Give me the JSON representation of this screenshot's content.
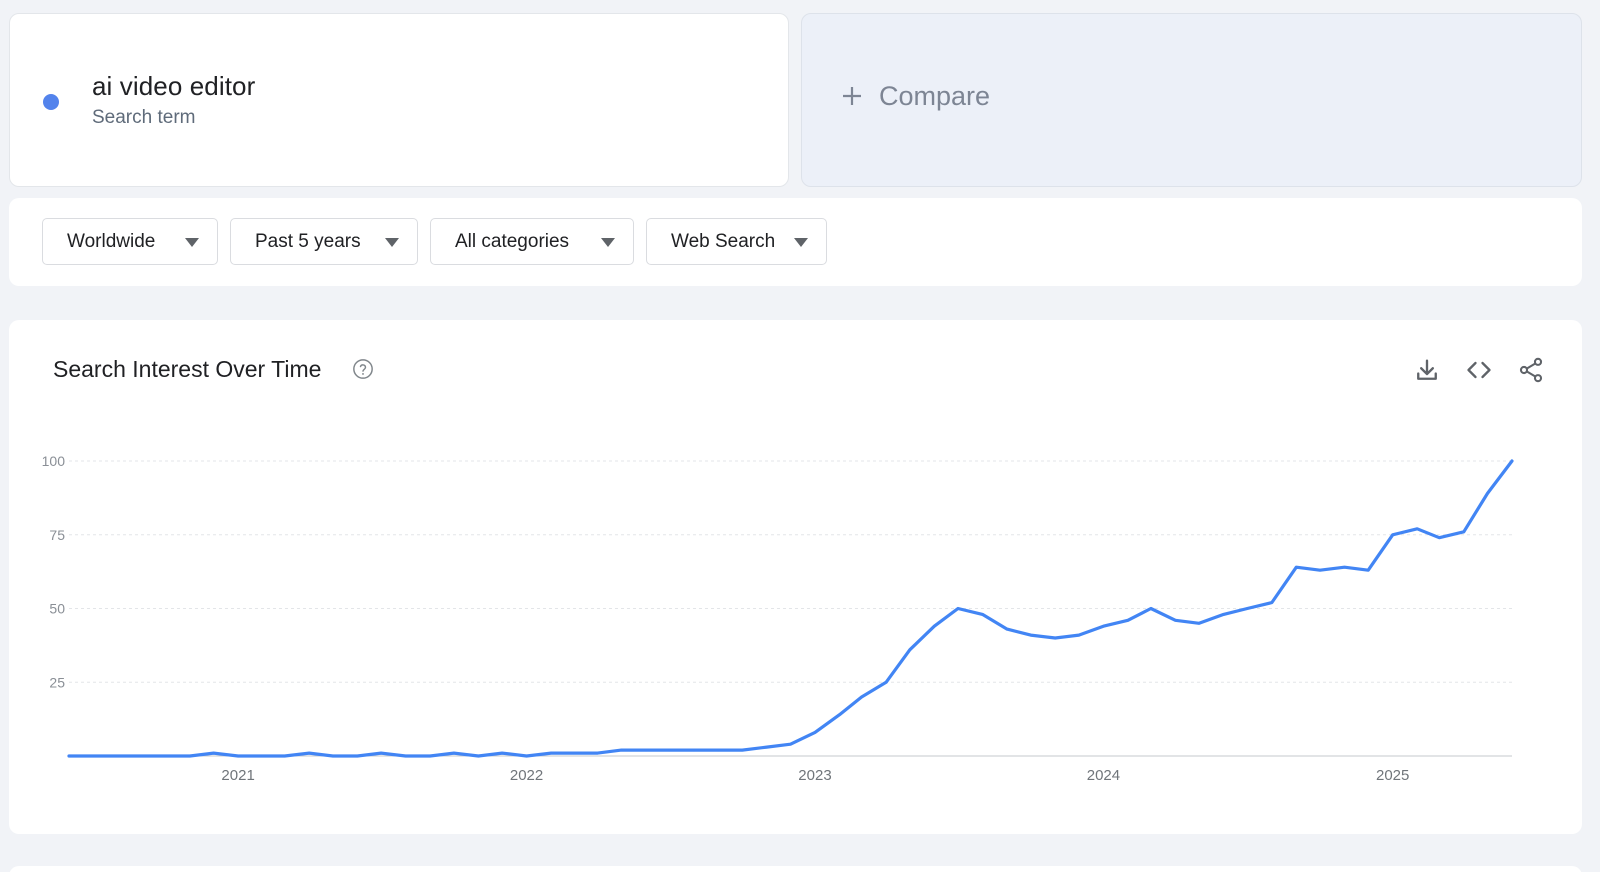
{
  "term": {
    "text": "ai video editor",
    "type_label": "Search term",
    "color": "#5383ec"
  },
  "compare": {
    "label": "Compare",
    "icon": "plus-icon"
  },
  "filters": [
    {
      "label": "Worldwide"
    },
    {
      "label": "Past 5 years"
    },
    {
      "label": "All categories"
    },
    {
      "label": "Web Search"
    }
  ],
  "panel": {
    "title": "Search Interest Over Time",
    "help_icon": "help-circle-icon",
    "actions": [
      "download-icon",
      "embed-code-icon",
      "share-icon"
    ]
  },
  "chart_data": {
    "type": "line",
    "title": "",
    "xlabel": "",
    "ylabel": "",
    "ylim": [
      0,
      100
    ],
    "yticks": [
      25,
      50,
      75,
      100
    ],
    "xticks": [
      {
        "label": "2021",
        "x": "2021-01-01"
      },
      {
        "label": "2022",
        "x": "2022-01-01"
      },
      {
        "label": "2023",
        "x": "2023-01-01"
      },
      {
        "label": "2024",
        "x": "2024-01-01"
      },
      {
        "label": "2025",
        "x": "2025-01-01"
      }
    ],
    "xrange": [
      "2020-06-01",
      "2025-06-01"
    ],
    "grid": true,
    "line_color": "#4285f4",
    "series": [
      {
        "points": [
          [
            "2020-06-01",
            0
          ],
          [
            "2020-07-01",
            0
          ],
          [
            "2020-08-01",
            0
          ],
          [
            "2020-09-01",
            0
          ],
          [
            "2020-10-01",
            0
          ],
          [
            "2020-11-01",
            0
          ],
          [
            "2020-12-01",
            1
          ],
          [
            "2021-01-01",
            0
          ],
          [
            "2021-02-01",
            0
          ],
          [
            "2021-03-01",
            0
          ],
          [
            "2021-04-01",
            1
          ],
          [
            "2021-05-01",
            0
          ],
          [
            "2021-06-01",
            0
          ],
          [
            "2021-07-01",
            1
          ],
          [
            "2021-08-01",
            0
          ],
          [
            "2021-09-01",
            0
          ],
          [
            "2021-10-01",
            1
          ],
          [
            "2021-11-01",
            0
          ],
          [
            "2021-12-01",
            1
          ],
          [
            "2022-01-01",
            0
          ],
          [
            "2022-02-01",
            1
          ],
          [
            "2022-03-01",
            1
          ],
          [
            "2022-04-01",
            1
          ],
          [
            "2022-05-01",
            2
          ],
          [
            "2022-06-01",
            2
          ],
          [
            "2022-07-01",
            2
          ],
          [
            "2022-08-01",
            2
          ],
          [
            "2022-09-01",
            2
          ],
          [
            "2022-10-01",
            2
          ],
          [
            "2022-11-01",
            3
          ],
          [
            "2022-12-01",
            4
          ],
          [
            "2023-01-01",
            8
          ],
          [
            "2023-02-01",
            14
          ],
          [
            "2023-03-01",
            20
          ],
          [
            "2023-04-01",
            25
          ],
          [
            "2023-05-01",
            36
          ],
          [
            "2023-06-01",
            44
          ],
          [
            "2023-07-01",
            50
          ],
          [
            "2023-08-01",
            48
          ],
          [
            "2023-09-01",
            43
          ],
          [
            "2023-10-01",
            41
          ],
          [
            "2023-11-01",
            40
          ],
          [
            "2023-12-01",
            41
          ],
          [
            "2024-01-01",
            44
          ],
          [
            "2024-02-01",
            46
          ],
          [
            "2024-03-01",
            50
          ],
          [
            "2024-04-01",
            46
          ],
          [
            "2024-05-01",
            45
          ],
          [
            "2024-06-01",
            48
          ],
          [
            "2024-07-01",
            50
          ],
          [
            "2024-08-01",
            52
          ],
          [
            "2024-09-01",
            64
          ],
          [
            "2024-10-01",
            63
          ],
          [
            "2024-11-01",
            64
          ],
          [
            "2024-12-01",
            63
          ],
          [
            "2025-01-01",
            75
          ],
          [
            "2025-02-01",
            77
          ],
          [
            "2025-03-01",
            74
          ],
          [
            "2025-04-01",
            76
          ],
          [
            "2025-05-01",
            89
          ],
          [
            "2025-06-01",
            100
          ]
        ]
      }
    ]
  }
}
